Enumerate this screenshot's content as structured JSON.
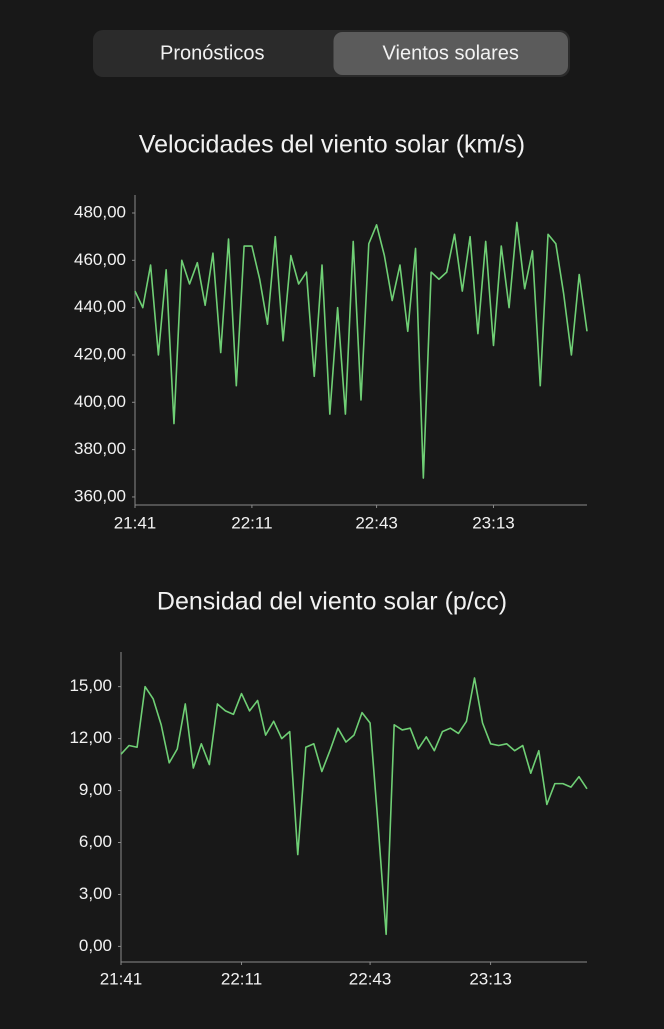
{
  "tabs": [
    "Pronósticos",
    "Vientos solares"
  ],
  "selected_tab": 1,
  "chart_data": [
    {
      "type": "line",
      "title": "Velocidades del viento solar (km/s)",
      "color": "#6fcf75",
      "x": [
        1301,
        1303,
        1305,
        1307,
        1309,
        1311,
        1313,
        1315,
        1317,
        1319,
        1321,
        1323,
        1325,
        1327,
        1329,
        1331,
        1333,
        1335,
        1337,
        1339,
        1341,
        1343,
        1345,
        1347,
        1349,
        1351,
        1353,
        1355,
        1357,
        1359,
        1361,
        1363,
        1365,
        1367,
        1369,
        1371,
        1373,
        1375,
        1377,
        1379,
        1381,
        1383,
        1385,
        1387,
        1389,
        1391,
        1393,
        1395,
        1397,
        1399,
        1401,
        1403,
        1405,
        1407,
        1409,
        1411,
        1413,
        1415,
        1417
      ],
      "values": [
        447,
        440,
        458,
        420,
        456,
        391,
        460,
        450,
        459,
        441,
        463,
        421,
        469,
        407,
        466,
        466,
        452,
        433,
        470,
        426,
        462,
        450,
        455,
        411,
        458,
        395,
        440,
        395,
        468,
        401,
        467,
        475,
        462,
        443,
        458,
        430,
        465,
        368,
        455,
        452,
        455,
        471,
        447,
        470,
        429,
        468,
        424,
        466,
        440,
        476,
        448,
        464,
        407,
        471,
        467,
        446,
        420,
        454,
        430
      ],
      "xlim": [
        1301,
        1417
      ],
      "xticks": [
        {
          "value": 1301,
          "label": "21:41"
        },
        {
          "value": 1331,
          "label": "22:11"
        },
        {
          "value": 1363,
          "label": "22:43"
        },
        {
          "value": 1393,
          "label": "23:13"
        }
      ],
      "ylim": [
        356.6,
        487.6
      ],
      "yticks": [
        {
          "value": 360,
          "label": "360,00"
        },
        {
          "value": 380,
          "label": "380,00"
        },
        {
          "value": 400,
          "label": "400,00"
        },
        {
          "value": 420,
          "label": "420,00"
        },
        {
          "value": 440,
          "label": "440,00"
        },
        {
          "value": 460,
          "label": "460,00"
        },
        {
          "value": 480,
          "label": "480,00"
        }
      ]
    },
    {
      "type": "line",
      "title": "Densidad del viento solar (p/cc)",
      "color": "#6fcf75",
      "x": [
        1301,
        1303,
        1305,
        1307,
        1309,
        1311,
        1313,
        1315,
        1317,
        1319,
        1321,
        1323,
        1325,
        1327,
        1329,
        1331,
        1333,
        1335,
        1337,
        1339,
        1341,
        1343,
        1345,
        1347,
        1349,
        1351,
        1353,
        1355,
        1357,
        1359,
        1361,
        1363,
        1365,
        1367,
        1369,
        1371,
        1373,
        1375,
        1377,
        1379,
        1381,
        1383,
        1385,
        1387,
        1389,
        1391,
        1393,
        1395,
        1397,
        1399,
        1401,
        1403,
        1405,
        1407,
        1409,
        1411,
        1413,
        1415,
        1417
      ],
      "values": [
        11.1,
        11.6,
        11.5,
        15.0,
        14.3,
        12.8,
        10.6,
        11.4,
        14.0,
        10.3,
        11.7,
        10.5,
        14.0,
        13.6,
        13.4,
        14.6,
        13.6,
        14.2,
        12.2,
        13.0,
        12.0,
        12.4,
        5.3,
        11.5,
        11.7,
        10.1,
        11.3,
        12.6,
        11.8,
        12.2,
        13.5,
        12.9,
        7.0,
        0.7,
        12.8,
        12.5,
        12.6,
        11.4,
        12.1,
        11.3,
        12.4,
        12.6,
        12.3,
        13.0,
        15.5,
        12.9,
        11.7,
        11.6,
        11.7,
        11.3,
        11.6,
        10.0,
        11.3,
        8.2,
        9.4,
        9.4,
        9.2,
        9.8,
        9.1
      ],
      "xlim": [
        1301,
        1417
      ],
      "xticks": [
        {
          "value": 1301,
          "label": "21:41"
        },
        {
          "value": 1331,
          "label": "22:11"
        },
        {
          "value": 1363,
          "label": "22:43"
        },
        {
          "value": 1393,
          "label": "23:13"
        }
      ],
      "ylim": [
        -0.9,
        17
      ],
      "yticks": [
        {
          "value": 0,
          "label": "0,00"
        },
        {
          "value": 3,
          "label": "3,00"
        },
        {
          "value": 6,
          "label": "6,00"
        },
        {
          "value": 9,
          "label": "9,00"
        },
        {
          "value": 12,
          "label": "12,00"
        },
        {
          "value": 15,
          "label": "15,00"
        }
      ]
    }
  ]
}
